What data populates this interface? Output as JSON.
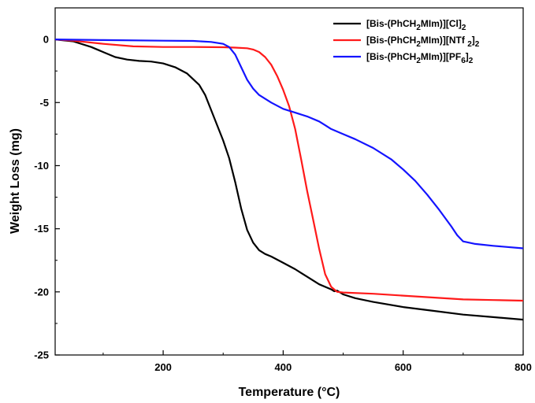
{
  "chart_data": {
    "type": "line",
    "title": "",
    "xlabel": "Temperature (°C)",
    "ylabel": "Weight Loss (mg)",
    "xlim": [
      20,
      800
    ],
    "ylim": [
      -25,
      2.5
    ],
    "xticks": [
      200,
      400,
      600,
      800
    ],
    "yticks": [
      0,
      -5,
      -10,
      -15,
      -20,
      -25
    ],
    "grid": false,
    "legend_position": "top-right",
    "series": [
      {
        "name": "[Bis-(PhCH2MIm)][Cl]2",
        "legend": {
          "base": "[Bis-(PhCH",
          "sub1": "2",
          "mid": "MIm)][Cl]",
          "sub2": "2"
        },
        "color": "#000000",
        "x": [
          20,
          50,
          80,
          100,
          120,
          140,
          160,
          180,
          200,
          220,
          240,
          260,
          270,
          280,
          290,
          300,
          310,
          320,
          330,
          340,
          350,
          360,
          370,
          380,
          400,
          420,
          440,
          460,
          480,
          485,
          490,
          500,
          520,
          550,
          600,
          650,
          700,
          750,
          800
        ],
        "y": [
          0,
          -0.15,
          -0.6,
          -1.0,
          -1.4,
          -1.6,
          -1.7,
          -1.75,
          -1.9,
          -2.2,
          -2.7,
          -3.6,
          -4.4,
          -5.6,
          -6.8,
          -8.0,
          -9.4,
          -11.3,
          -13.4,
          -15.1,
          -16.1,
          -16.7,
          -17.0,
          -17.2,
          -17.7,
          -18.2,
          -18.8,
          -19.4,
          -19.8,
          -19.95,
          -19.9,
          -20.2,
          -20.5,
          -20.8,
          -21.2,
          -21.5,
          -21.8,
          -22.0,
          -22.2
        ]
      },
      {
        "name": "[Bis-(PhCH2MIm)][NTf 2]2",
        "legend": {
          "base": "[Bis-(PhCH",
          "sub1": "2",
          "mid": "MIm)][NTf ",
          "sub2": "2",
          "tail": "]",
          "sub3": "2"
        },
        "color": "#ff1a1a",
        "x": [
          20,
          50,
          100,
          150,
          200,
          250,
          300,
          320,
          340,
          350,
          360,
          370,
          380,
          390,
          400,
          410,
          420,
          430,
          440,
          450,
          460,
          470,
          480,
          490,
          500,
          550,
          600,
          650,
          700,
          750,
          800
        ],
        "y": [
          0,
          -0.1,
          -0.35,
          -0.55,
          -0.6,
          -0.6,
          -0.62,
          -0.65,
          -0.7,
          -0.8,
          -1.0,
          -1.4,
          -2.0,
          -2.9,
          -4.0,
          -5.3,
          -7.1,
          -9.5,
          -12.0,
          -14.3,
          -16.6,
          -18.6,
          -19.6,
          -20.0,
          -20.05,
          -20.15,
          -20.3,
          -20.45,
          -20.6,
          -20.65,
          -20.7
        ]
      },
      {
        "name": "[Bis-(PhCH2MIm)][PF6]2",
        "legend": {
          "base": "[Bis-(PhCH",
          "sub1": "2",
          "mid": "MIm)][PF",
          "sub2": "6",
          "tail": "]",
          "sub3": "2"
        },
        "color": "#1414ff",
        "x": [
          20,
          100,
          200,
          250,
          280,
          300,
          310,
          320,
          330,
          340,
          350,
          360,
          380,
          400,
          420,
          440,
          460,
          470,
          480,
          500,
          520,
          550,
          580,
          600,
          620,
          640,
          660,
          680,
          690,
          700,
          710,
          720,
          750,
          800
        ],
        "y": [
          0,
          -0.05,
          -0.1,
          -0.12,
          -0.2,
          -0.35,
          -0.6,
          -1.2,
          -2.2,
          -3.2,
          -3.9,
          -4.4,
          -5.0,
          -5.5,
          -5.8,
          -6.1,
          -6.5,
          -6.8,
          -7.1,
          -7.5,
          -7.9,
          -8.6,
          -9.5,
          -10.3,
          -11.2,
          -12.3,
          -13.5,
          -14.8,
          -15.5,
          -16.0,
          -16.1,
          -16.2,
          -16.35,
          -16.55
        ]
      }
    ]
  }
}
